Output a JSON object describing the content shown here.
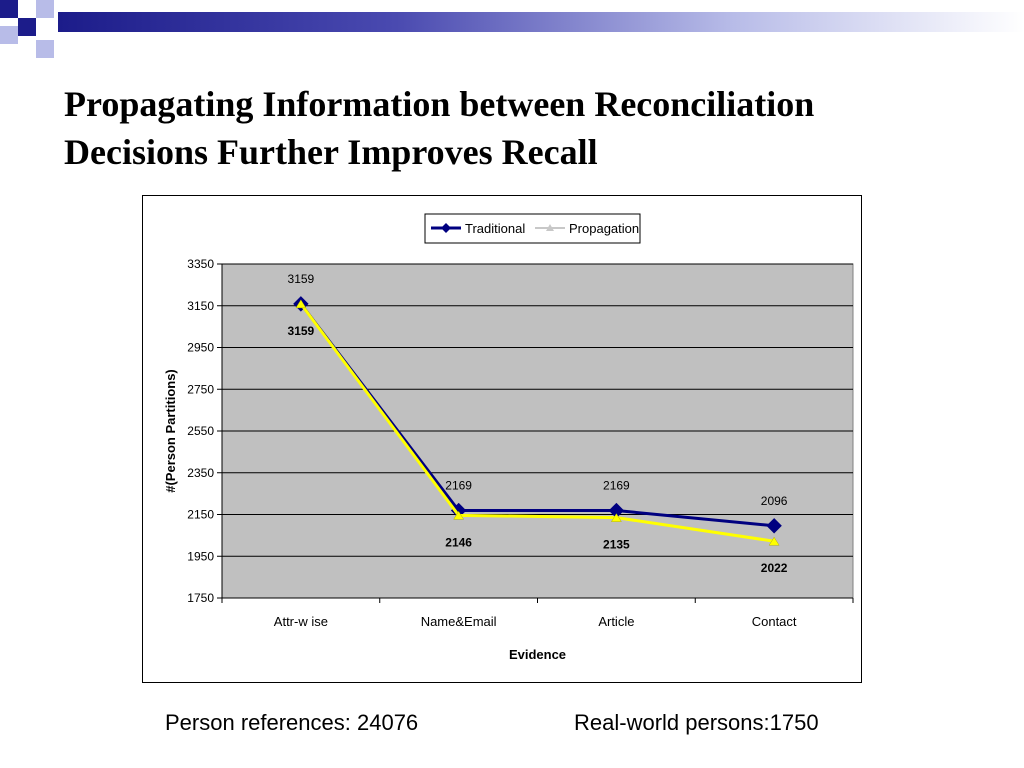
{
  "slide": {
    "title_line1": "Propagating Information between Reconciliation",
    "title_line2": "Decisions Further Improves Recall",
    "footer_left": "Person references: 24076",
    "footer_right": "Real-world persons:1750"
  },
  "colors": {
    "traditional": "#000080",
    "propagation": "#FFFF00",
    "plot_bg": "#C0C0C0",
    "deco_navy": "#1c1c8a",
    "deco_light": "#b8bce8"
  },
  "chart_data": {
    "type": "line",
    "categories": [
      "Attr-w ise",
      "Name&Email",
      "Article",
      "Contact"
    ],
    "series": [
      {
        "name": "Traditional",
        "values": [
          3159,
          2169,
          2169,
          2096
        ],
        "labels": [
          "3159",
          "2169",
          "2169",
          "2096"
        ]
      },
      {
        "name": "Propagation",
        "values": [
          3159,
          2146,
          2135,
          2022
        ],
        "labels": [
          "3159",
          "2146",
          "2135",
          "2022"
        ]
      }
    ],
    "xlabel": "Evidence",
    "ylabel": "#(Person Partitions)",
    "ylim": [
      1750,
      3350
    ],
    "yticks": [
      "1750",
      "1950",
      "2150",
      "2350",
      "2550",
      "2750",
      "2950",
      "3150",
      "3350"
    ],
    "grid": true,
    "legend_position": "top-center"
  }
}
